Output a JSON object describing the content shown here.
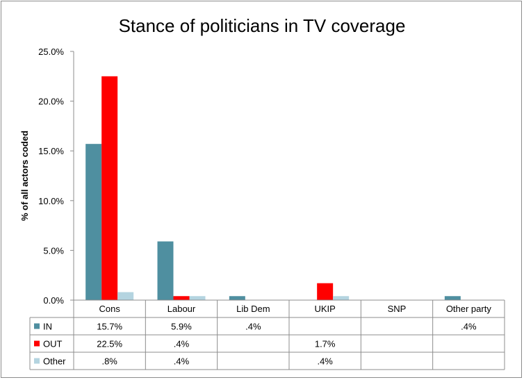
{
  "chart_data": {
    "type": "bar",
    "title": "Stance of politicians in TV coverage",
    "ylabel": "% of all actors coded",
    "xlabel": "",
    "ylim": [
      0,
      25
    ],
    "yticks": [
      "0.0%",
      "5.0%",
      "10.0%",
      "15.0%",
      "20.0%",
      "25.0%"
    ],
    "ytick_values": [
      0,
      5,
      10,
      15,
      20,
      25
    ],
    "grid": false,
    "legend": "data-table",
    "categories": [
      "Cons",
      "Labour",
      "Lib Dem",
      "UKIP",
      "SNP",
      "Other party"
    ],
    "series": [
      {
        "name": "IN",
        "color": "#4f8fa0",
        "values": [
          15.7,
          5.9,
          0.4,
          0,
          0,
          0.4
        ],
        "labels": [
          "15.7%",
          "5.9%",
          ".4%",
          "",
          "",
          ".4%"
        ]
      },
      {
        "name": "OUT",
        "color": "#ff0000",
        "values": [
          22.5,
          0.4,
          0,
          1.7,
          0,
          0
        ],
        "labels": [
          "22.5%",
          ".4%",
          "",
          "1.7%",
          "",
          ""
        ]
      },
      {
        "name": "Other",
        "color": "#b4d4e0",
        "values": [
          0.8,
          0.4,
          0,
          0.4,
          0,
          0
        ],
        "labels": [
          ".8%",
          ".4%",
          "",
          ".4%",
          "",
          ""
        ]
      }
    ]
  }
}
